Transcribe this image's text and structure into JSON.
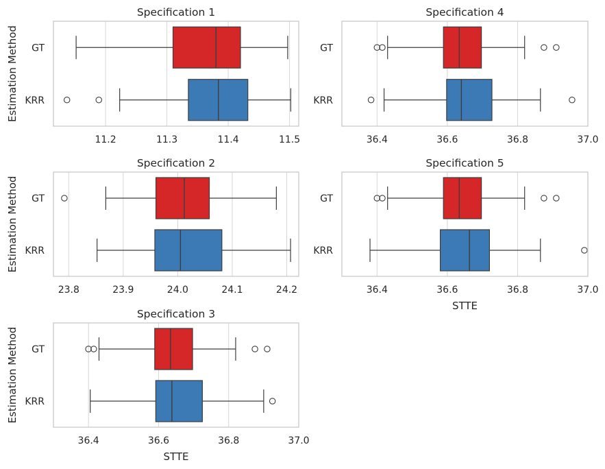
{
  "colors": {
    "GT": "#d62728",
    "KRR": "#3c7ab6",
    "grid": "#d6d6d6",
    "frame": "#cccccc",
    "line": "#3d3d3d"
  },
  "chart_data": [
    {
      "type": "box",
      "title": "Specification 1",
      "ylabel": "Estimation Method",
      "xlabel": "",
      "xlim": [
        11.115,
        11.515
      ],
      "xticks": [
        "11.2",
        "11.3",
        "11.4",
        "11.5"
      ],
      "grid": true,
      "categories": [
        "GT",
        "KRR"
      ],
      "boxes": [
        {
          "category": "GT",
          "whisker_low": 11.152,
          "q1": 11.31,
          "median": 11.38,
          "q3": 11.42,
          "whisker_high": 11.497,
          "outliers": []
        },
        {
          "category": "KRR",
          "whisker_low": 11.223,
          "q1": 11.335,
          "median": 11.384,
          "q3": 11.432,
          "whisker_high": 11.502,
          "outliers": [
            11.137,
            11.189
          ]
        }
      ]
    },
    {
      "type": "box",
      "title": "Specification 4",
      "ylabel": "",
      "xlabel": "",
      "xlim": [
        36.3,
        37.0
      ],
      "xticks": [
        "36.4",
        "36.6",
        "36.8",
        "37.0"
      ],
      "grid": true,
      "categories": [
        "GT",
        "KRR"
      ],
      "boxes": [
        {
          "category": "GT",
          "whisker_low": 36.43,
          "q1": 36.589,
          "median": 36.634,
          "q3": 36.697,
          "whisker_high": 36.82,
          "outliers": [
            36.4,
            36.415,
            36.875,
            36.91
          ]
        },
        {
          "category": "KRR",
          "whisker_low": 36.42,
          "q1": 36.598,
          "median": 36.64,
          "q3": 36.727,
          "whisker_high": 36.865,
          "outliers": [
            36.383,
            36.955
          ]
        }
      ]
    },
    {
      "type": "box",
      "title": "Specification 2",
      "ylabel": "Estimation Method",
      "xlabel": "",
      "xlim": [
        23.772,
        24.222
      ],
      "xticks": [
        "23.8",
        "23.9",
        "24.0",
        "24.1",
        "24.2"
      ],
      "grid": true,
      "categories": [
        "GT",
        "KRR"
      ],
      "boxes": [
        {
          "category": "GT",
          "whisker_low": 23.868,
          "q1": 23.96,
          "median": 24.012,
          "q3": 24.058,
          "whisker_high": 24.181,
          "outliers": [
            23.792
          ]
        },
        {
          "category": "KRR",
          "whisker_low": 23.852,
          "q1": 23.958,
          "median": 24.005,
          "q3": 24.081,
          "whisker_high": 24.207,
          "outliers": []
        }
      ]
    },
    {
      "type": "box",
      "title": "Specification 5",
      "ylabel": "",
      "xlabel": "STTE",
      "xlim": [
        36.3,
        37.0
      ],
      "xticks": [
        "36.4",
        "36.6",
        "36.8",
        "37.0"
      ],
      "grid": true,
      "categories": [
        "GT",
        "KRR"
      ],
      "boxes": [
        {
          "category": "GT",
          "whisker_low": 36.43,
          "q1": 36.589,
          "median": 36.634,
          "q3": 36.697,
          "whisker_high": 36.82,
          "outliers": [
            36.4,
            36.415,
            36.875,
            36.91
          ]
        },
        {
          "category": "KRR",
          "whisker_low": 36.38,
          "q1": 36.58,
          "median": 36.663,
          "q3": 36.72,
          "whisker_high": 36.865,
          "outliers": [
            36.99
          ]
        }
      ]
    },
    {
      "type": "box",
      "title": "Specification 3",
      "ylabel": "Estimation Method",
      "xlabel": "STTE",
      "xlim": [
        36.3,
        37.0
      ],
      "xticks": [
        "36.4",
        "36.6",
        "36.8",
        "37.0"
      ],
      "grid": true,
      "categories": [
        "GT",
        "KRR"
      ],
      "boxes": [
        {
          "category": "GT",
          "whisker_low": 36.43,
          "q1": 36.589,
          "median": 36.634,
          "q3": 36.697,
          "whisker_high": 36.82,
          "outliers": [
            36.4,
            36.415,
            36.875,
            36.91
          ]
        },
        {
          "category": "KRR",
          "whisker_low": 36.405,
          "q1": 36.592,
          "median": 36.638,
          "q3": 36.725,
          "whisker_high": 36.9,
          "outliers": [
            36.925
          ]
        }
      ]
    }
  ]
}
